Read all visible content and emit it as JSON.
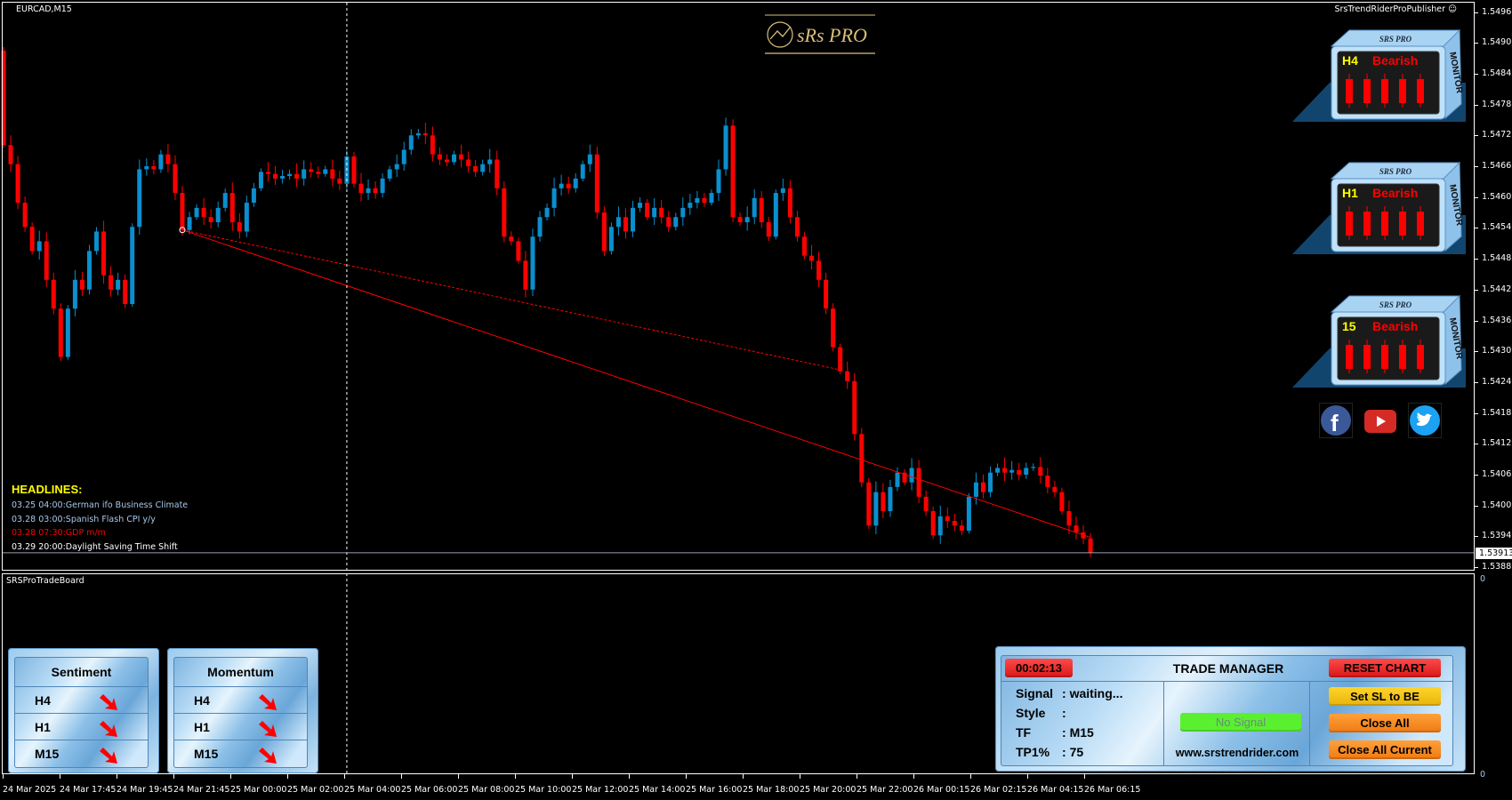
{
  "window": {
    "symbol_title": "EURCAD,M15",
    "publisher": "SrsTrendRiderProPublisher",
    "subwindow_title": "SRSProTradeBoard",
    "subwindow_scale_top": "0",
    "subwindow_scale_bottom": "0"
  },
  "logo": {
    "text": "sRsPRO",
    "color": "#d9bf7a"
  },
  "colors": {
    "bull": "#0a8fcf",
    "bear": "#ff0000",
    "background": "#000000",
    "grid_text": "#ffffff",
    "trendline": "#ff0000"
  },
  "price_axis": {
    "labels": [
      "1.54965",
      "1.54905",
      "1.54845",
      "1.54785",
      "1.54725",
      "1.54665",
      "1.54605",
      "1.54545",
      "1.54485",
      "1.54425",
      "1.54365",
      "1.54305",
      "1.54245",
      "1.54185",
      "1.54125",
      "1.54065",
      "1.54005",
      "1.53945",
      "1.53885"
    ],
    "current_price": "1.53913"
  },
  "time_axis": {
    "labels": [
      "24 Mar 2025",
      "24 Mar 17:45",
      "24 Mar 19:45",
      "24 Mar 21:45",
      "25 Mar 00:00",
      "25 Mar 02:00",
      "25 Mar 04:00",
      "25 Mar 06:00",
      "25 Mar 08:00",
      "25 Mar 10:00",
      "25 Mar 12:00",
      "25 Mar 14:00",
      "25 Mar 16:00",
      "25 Mar 18:00",
      "25 Mar 20:00",
      "25 Mar 22:00",
      "26 Mar 00:15",
      "26 Mar 02:15",
      "26 Mar 04:15",
      "26 Mar 06:15"
    ]
  },
  "chart_data": {
    "type": "candlestick",
    "timeframe": "M15",
    "first_open": 1.5489,
    "closes": [
      1.54706,
      1.54669,
      1.54594,
      1.54547,
      1.545,
      1.54519,
      1.54444,
      1.54388,
      1.54294,
      1.54388,
      1.54444,
      1.54425,
      1.545,
      1.54538,
      1.54453,
      1.54425,
      1.54444,
      1.54397,
      1.54547,
      1.54659,
      1.54665,
      1.54659,
      1.54688,
      1.54669,
      1.54613,
      1.54541,
      1.54566,
      1.54584,
      1.54566,
      1.54556,
      1.54584,
      1.54613,
      1.54556,
      1.54538,
      1.54594,
      1.54622,
      1.54654,
      1.5465,
      1.54641,
      1.54646,
      1.5465,
      1.54641,
      1.54659,
      1.54654,
      1.5465,
      1.54659,
      1.54641,
      1.54631,
      1.54684,
      1.54631,
      1.54613,
      1.54622,
      1.54613,
      1.54641,
      1.54659,
      1.54669,
      1.54697,
      1.54725,
      1.54729,
      1.54725,
      1.54688,
      1.54678,
      1.54673,
      1.54688,
      1.54678,
      1.54665,
      1.54654,
      1.54669,
      1.54678,
      1.54622,
      1.54528,
      1.54519,
      1.54481,
      1.54425,
      1.54528,
      1.54566,
      1.54584,
      1.54622,
      1.54631,
      1.54622,
      1.54641,
      1.54669,
      1.54688,
      1.54575,
      1.545,
      1.54547,
      1.54566,
      1.54538,
      1.54584,
      1.54594,
      1.54566,
      1.54584,
      1.54566,
      1.54547,
      1.54566,
      1.54584,
      1.54594,
      1.54603,
      1.54594,
      1.54613,
      1.54659,
      1.54744,
      1.54566,
      1.54556,
      1.54566,
      1.54603,
      1.54556,
      1.54528,
      1.54613,
      1.54622,
      1.54566,
      1.54528,
      1.54491,
      1.54481,
      1.54444,
      1.54388,
      1.54313,
      1.54266,
      1.54247,
      1.54144,
      1.5405,
      1.53966,
      1.54031,
      1.53994,
      1.54041,
      1.54069,
      1.5405,
      1.54078,
      1.54022,
      1.53994,
      1.53947,
      1.53984,
      1.53975,
      1.53966,
      1.53956,
      1.54022,
      1.5405,
      1.54031,
      1.54069,
      1.54078,
      1.54069,
      1.54074,
      1.54065,
      1.54078,
      1.5408,
      1.54063,
      1.54041,
      1.54031,
      1.53994,
      1.53966,
      1.53953,
      1.53941,
      1.53913
    ],
    "ylim": [
      1.53885,
      1.54965
    ],
    "trendlines": [
      {
        "style": "solid",
        "from_bar": 25,
        "from_price": 1.54541,
        "to_bar": 152,
        "to_price": 1.53943
      },
      {
        "style": "dashed",
        "from_bar": 25,
        "from_price": 1.54541,
        "to_bar": 117,
        "to_price": 1.54269
      }
    ],
    "crosshair_bar": 48
  },
  "headlines": {
    "title": "HEADLINES:",
    "items": [
      {
        "text": "03.25 04:00:German ifo Business Climate",
        "color": "#a9c8e8"
      },
      {
        "text": "03.28 03:00:Spanish Flash CPI y/y",
        "color": "#a9c8e8"
      },
      {
        "text": "03.28 07:30:GDP m/m",
        "color": "#ff0000"
      },
      {
        "text": "03.29 20:00:Daylight Saving Time Shift",
        "color": "#ffffff"
      }
    ]
  },
  "monitors": [
    {
      "brand": "SRS PRO",
      "side": "MONITOR",
      "tf": "H4",
      "trend": "Bearish"
    },
    {
      "brand": "SRS PRO",
      "side": "MONITOR",
      "tf": "H1",
      "trend": "Bearish"
    },
    {
      "brand": "SRS PRO",
      "side": "MONITOR",
      "tf": "15",
      "trend": "Bearish"
    }
  ],
  "social": [
    {
      "name": "facebook",
      "color": "#3b5998"
    },
    {
      "name": "youtube",
      "color": "#e52d27"
    },
    {
      "name": "twitter",
      "color": "#1da1f2"
    }
  ],
  "sentiment": {
    "title": "Sentiment",
    "rows": [
      {
        "tf": "H4",
        "direction": "down"
      },
      {
        "tf": "H1",
        "direction": "down"
      },
      {
        "tf": "M15",
        "direction": "down"
      }
    ]
  },
  "momentum": {
    "title": "Momentum",
    "rows": [
      {
        "tf": "H4",
        "direction": "down"
      },
      {
        "tf": "H1",
        "direction": "down"
      },
      {
        "tf": "M15",
        "direction": "down"
      }
    ]
  },
  "trade_manager": {
    "timer": "00:02:13",
    "title": "TRADE MANAGER",
    "reset_label": "RESET CHART",
    "signal_key": "Signal",
    "signal_val": "waiting...",
    "style_key": "Style",
    "style_val": "",
    "tf_key": "TF",
    "tf_val": "M15",
    "tp_key": "TP1%",
    "tp_val": "75",
    "signal_button": "No Signal",
    "website": "www.srstrendrider.com",
    "sl_be_label": "Set SL to BE",
    "close_all_label": "Close All",
    "close_all_current_label": "Close All Current"
  }
}
